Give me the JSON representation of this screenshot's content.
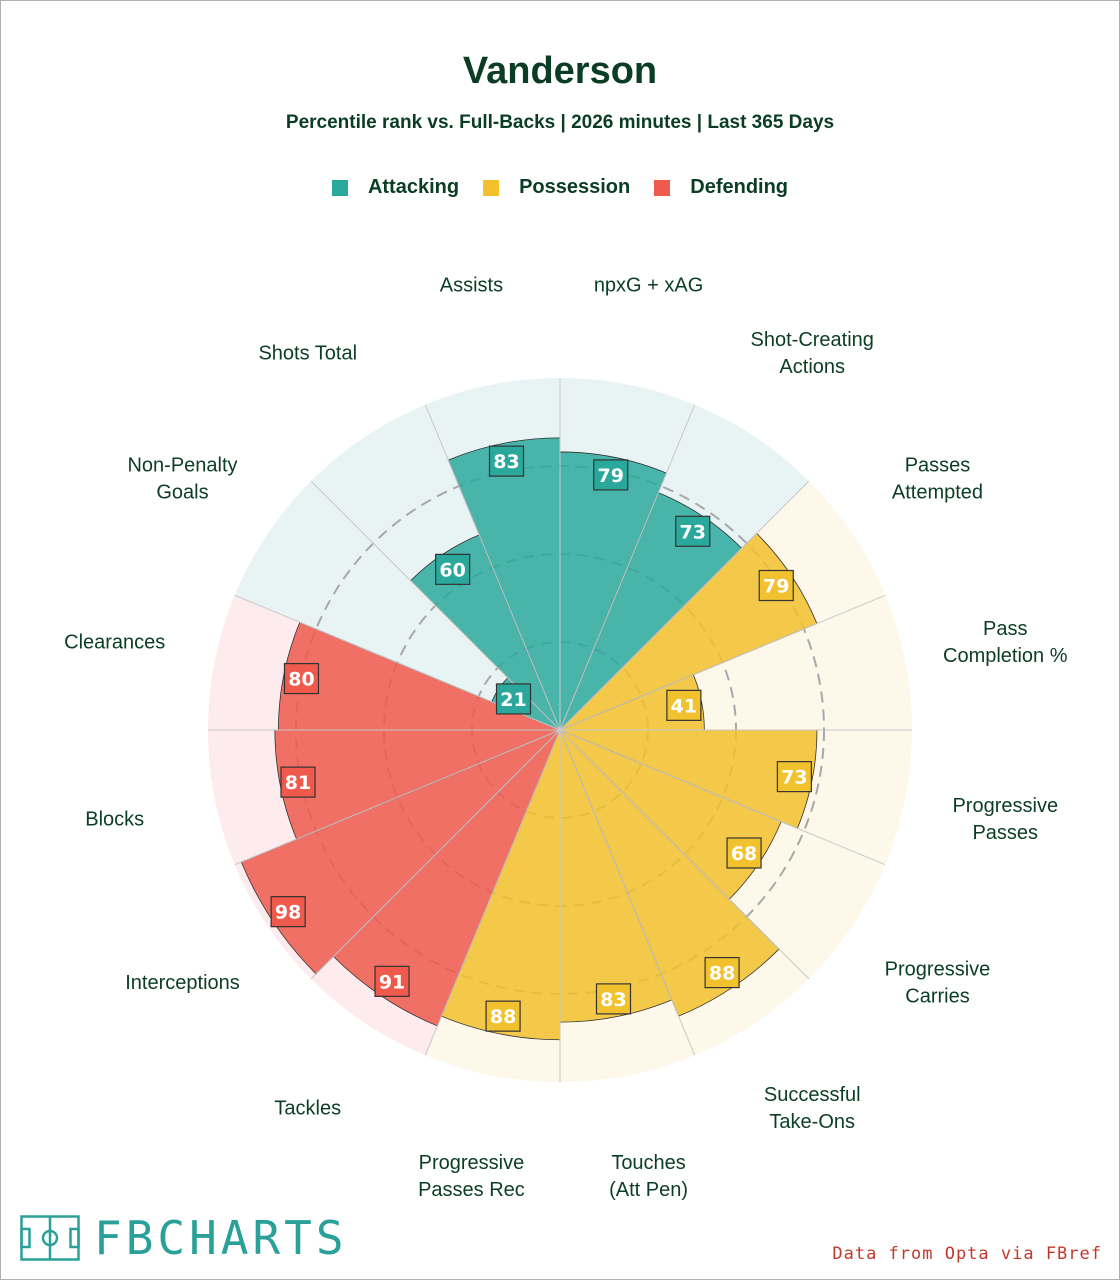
{
  "colors": {
    "title": "#0b3d24",
    "attacking": "#2ba89c",
    "possession": "#f2c12e",
    "defending": "#ef5a4c",
    "attacking_bg": "#e8f4f3",
    "possession_bg": "#fdf8e9",
    "defending_bg": "#fdebed",
    "source": "#c0392b",
    "logo": "#2aa198"
  },
  "legend": [
    {
      "label": "Attacking",
      "color": "#2ba89c"
    },
    {
      "label": "Possession",
      "color": "#f2c12e"
    },
    {
      "label": "Defending",
      "color": "#ef5a4c"
    }
  ],
  "footer": {
    "logo_text": "FBCHARTS",
    "source": "Data from Opta via FBref"
  },
  "chart_data": {
    "type": "polar-bar",
    "title": "Vanderson",
    "subtitle": "Percentile rank vs. Full-Backs | 2026 minutes | Last 365 Days",
    "range": [
      0,
      100
    ],
    "gridlines": [
      25,
      50,
      75
    ],
    "categories": [
      {
        "label": "npxG + xAG",
        "group": "Attacking",
        "value": 79
      },
      {
        "label": "Shot-Creating Actions",
        "group": "Attacking",
        "value": 73
      },
      {
        "label": "Passes Attempted",
        "group": "Possession",
        "value": 79
      },
      {
        "label": "Pass Completion %",
        "group": "Possession",
        "value": 41
      },
      {
        "label": "Progressive Passes",
        "group": "Possession",
        "value": 73
      },
      {
        "label": "Progressive Carries",
        "group": "Possession",
        "value": 68
      },
      {
        "label": "Successful Take-Ons",
        "group": "Possession",
        "value": 88
      },
      {
        "label": "Touches (Att Pen)",
        "group": "Possession",
        "value": 83
      },
      {
        "label": "Progressive Passes Rec",
        "group": "Possession",
        "value": 88
      },
      {
        "label": "Tackles",
        "group": "Defending",
        "value": 91
      },
      {
        "label": "Interceptions",
        "group": "Defending",
        "value": 98
      },
      {
        "label": "Blocks",
        "group": "Defending",
        "value": 81
      },
      {
        "label": "Clearances",
        "group": "Defending",
        "value": 80
      },
      {
        "label": "Non-Penalty Goals",
        "group": "Attacking",
        "value": 21
      },
      {
        "label": "Shots Total",
        "group": "Attacking",
        "value": 60
      },
      {
        "label": "Assists",
        "group": "Attacking",
        "value": 83
      }
    ]
  }
}
